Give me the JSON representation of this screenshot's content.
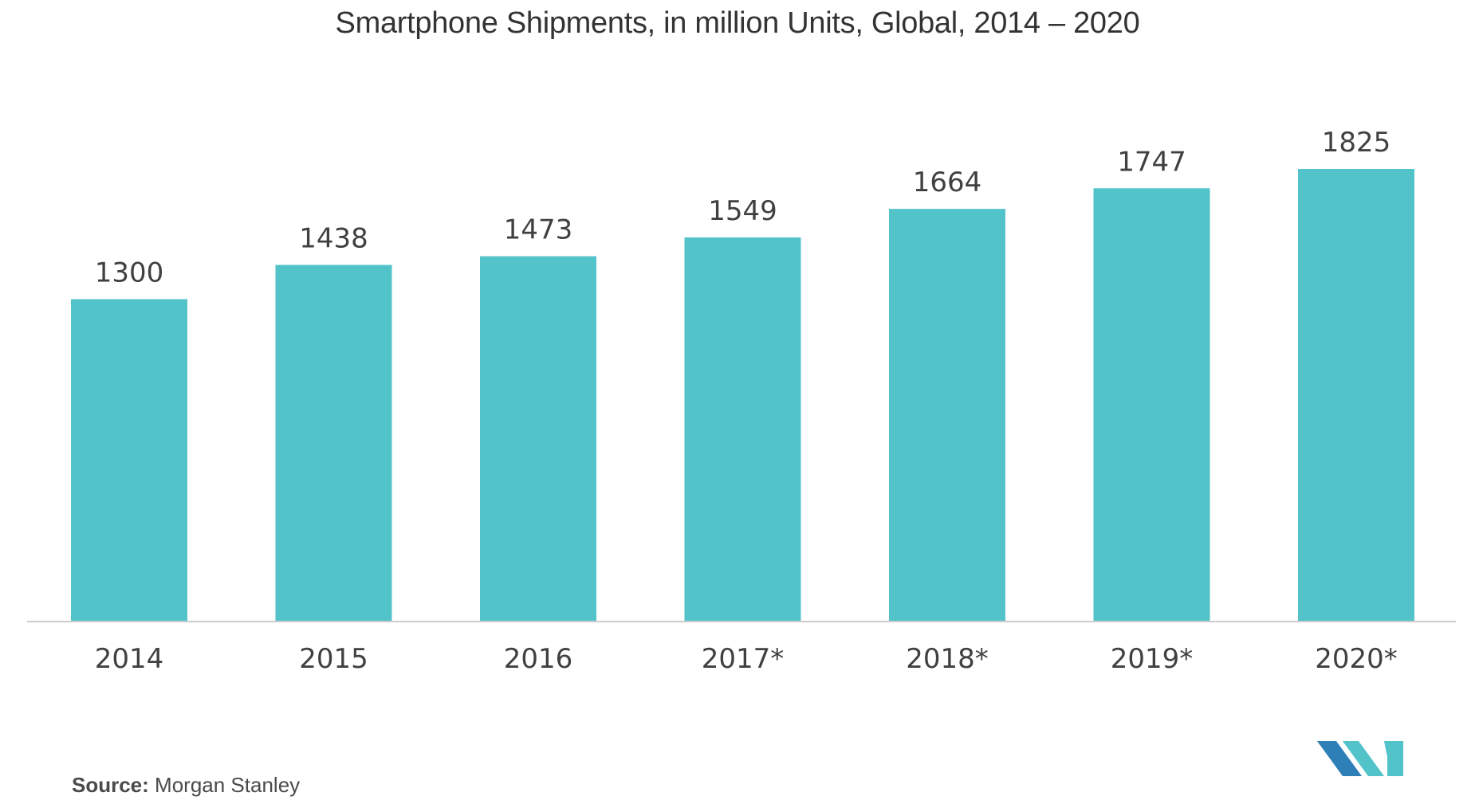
{
  "chart_data": {
    "type": "bar",
    "title": "Smartphone Shipments, in million Units, Global, 2014 – 2020",
    "categories": [
      "2014",
      "2015",
      "2016",
      "2017*",
      "2018*",
      "2019*",
      "2020*"
    ],
    "values": [
      1300,
      1438,
      1473,
      1549,
      1664,
      1747,
      1825
    ],
    "xlabel": "",
    "ylabel": "",
    "ylim": [
      0,
      1825
    ],
    "grid": false,
    "legend": "none",
    "bar_color": "#52C3C9"
  },
  "source": {
    "label": "Source:",
    "text": "Morgan Stanley"
  },
  "colors": {
    "axis": "#cccccc",
    "text": "#404040",
    "logo_dark": "#2E7FB8",
    "logo_light": "#52C3C9"
  }
}
